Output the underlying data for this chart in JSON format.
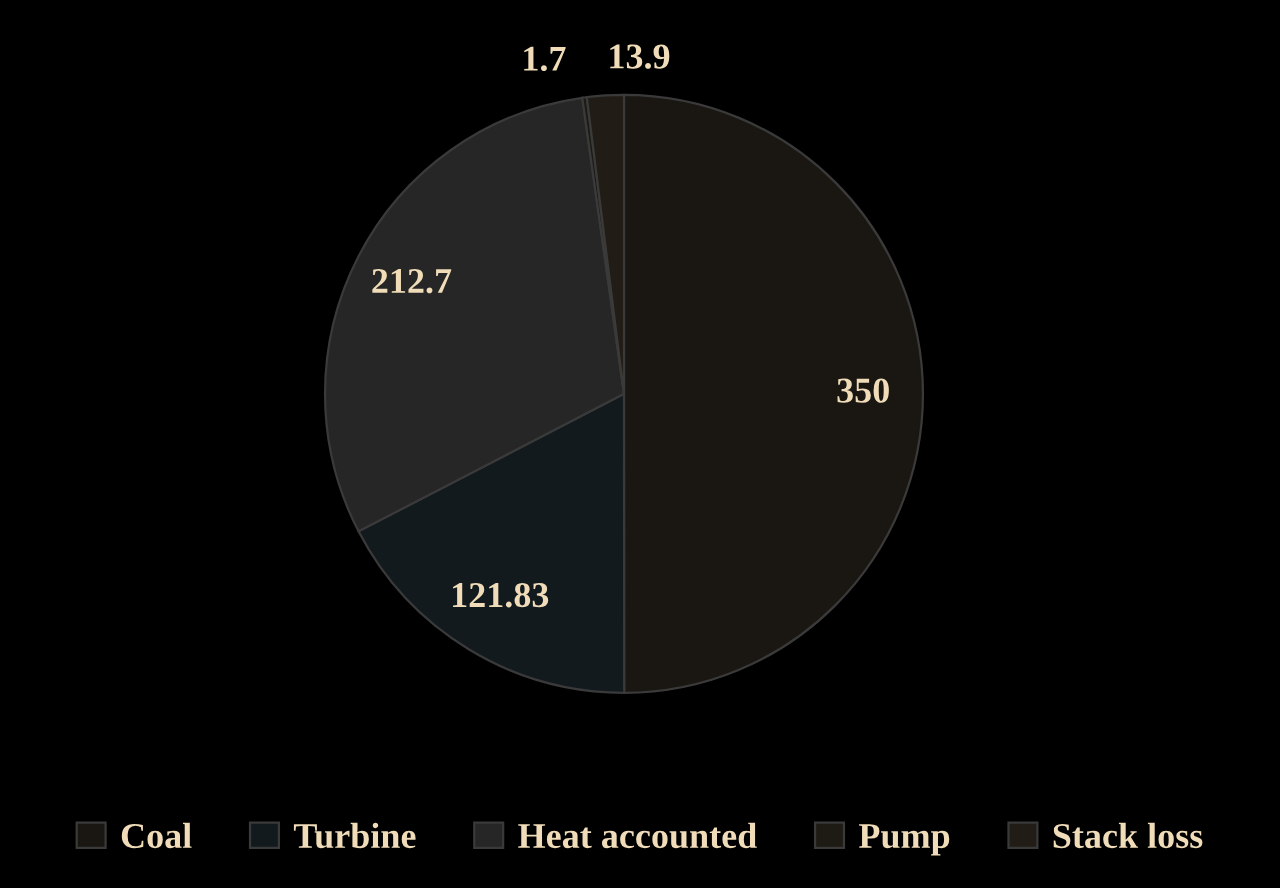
{
  "chart_data": {
    "type": "pie",
    "categories": [
      "Coal",
      "Turbine",
      "Heat accounted",
      "Pump",
      "Stack loss"
    ],
    "values": [
      350,
      121.83,
      212.7,
      1.7,
      13.9
    ],
    "colors": [
      "#1a1712",
      "#121a1e",
      "#262626",
      "#1e1a14",
      "#221c16"
    ],
    "data_labels": true,
    "legend": "bottom"
  }
}
